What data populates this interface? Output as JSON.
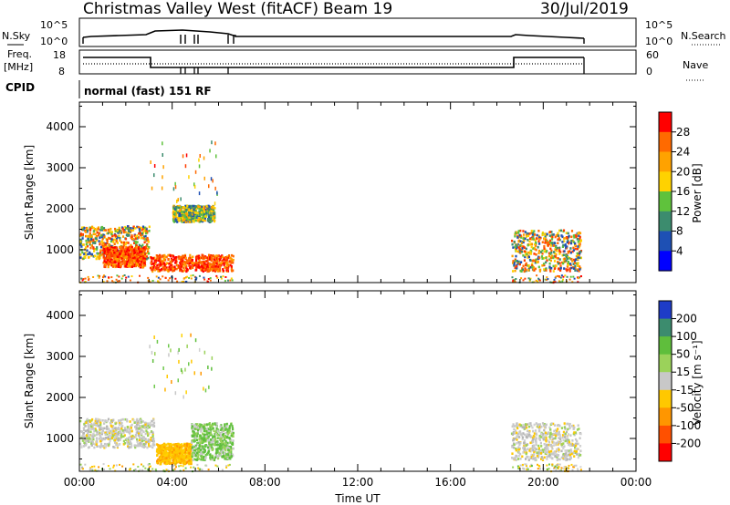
{
  "header": {
    "title": "Christmas Valley West (fitACF)",
    "beam": "Beam 19",
    "date": "30/Jul/2019"
  },
  "summary": {
    "nsky_label": "N.Sky",
    "nsky_ticks": [
      "10^5",
      "10^0"
    ],
    "nsearch_label": "N.Search",
    "freq_label_1": "Freq.",
    "freq_label_2": "[MHz]",
    "freq_ticks": [
      "18",
      "8"
    ],
    "nave_label": "Nave",
    "nave_ticks": [
      "60",
      "0"
    ],
    "cpid_label": "CPID",
    "cpid_value": "normal (fast) 151 RF"
  },
  "chart_data": [
    {
      "type": "heatmap",
      "name": "power",
      "ylabel": "Slant Range [km]",
      "xlabel": "",
      "ylim": [
        200,
        4600
      ],
      "yticks": [
        "4000",
        "3000",
        "2000",
        "1000"
      ],
      "xlim_hours": [
        0,
        24
      ],
      "colorbar_label": "Power [dB]",
      "colorbar_ticks": [
        "28",
        "24",
        "20",
        "16",
        "12",
        "8",
        "4"
      ],
      "colorbar_colors": [
        "#ff0000",
        "#ff6a00",
        "#ffa200",
        "#ffd200",
        "#5fc23c",
        "#3c8c6e",
        "#1e50b4",
        "#0000ff"
      ],
      "regions": [
        {
          "t": [
            0.0,
            3.0
          ],
          "range": [
            800,
            1600
          ],
          "level": "mid-high"
        },
        {
          "t": [
            1.0,
            2.8
          ],
          "range": [
            600,
            1100
          ],
          "level": "high"
        },
        {
          "t": [
            3.0,
            6.6
          ],
          "range": [
            500,
            900
          ],
          "level": "high"
        },
        {
          "t": [
            4.0,
            5.8
          ],
          "range": [
            1700,
            2100
          ],
          "level": "mid"
        },
        {
          "t": [
            18.6,
            21.6
          ],
          "range": [
            500,
            1500
          ],
          "level": "mid-high"
        }
      ]
    },
    {
      "type": "heatmap",
      "name": "velocity",
      "ylabel": "Slant Range [km]",
      "xlabel": "Time UT",
      "ylim": [
        200,
        4600
      ],
      "yticks": [
        "4000",
        "3000",
        "2000",
        "1000"
      ],
      "xticks": [
        "00:00",
        "04:00",
        "08:00",
        "12:00",
        "16:00",
        "20:00",
        "00:00"
      ],
      "colorbar_label": "Velocity [m s⁻¹]",
      "colorbar_ticks": [
        "200",
        "100",
        "50",
        "15",
        "-15",
        "-50",
        "-100",
        "-200"
      ],
      "colorbar_colors": [
        "#1e3cc8",
        "#3c8c6e",
        "#5fbe3c",
        "#9bd25a",
        "#c8c8c8",
        "#ffc800",
        "#ff9600",
        "#ff5000",
        "#ff0000"
      ],
      "regions": [
        {
          "t": [
            0.0,
            3.2
          ],
          "range": [
            800,
            1500
          ],
          "level": "low"
        },
        {
          "t": [
            3.3,
            4.8
          ],
          "range": [
            400,
            900
          ],
          "level": "negative"
        },
        {
          "t": [
            4.8,
            6.6
          ],
          "range": [
            500,
            1400
          ],
          "level": "positive"
        },
        {
          "t": [
            18.6,
            21.6
          ],
          "range": [
            500,
            1400
          ],
          "level": "low"
        }
      ]
    }
  ]
}
